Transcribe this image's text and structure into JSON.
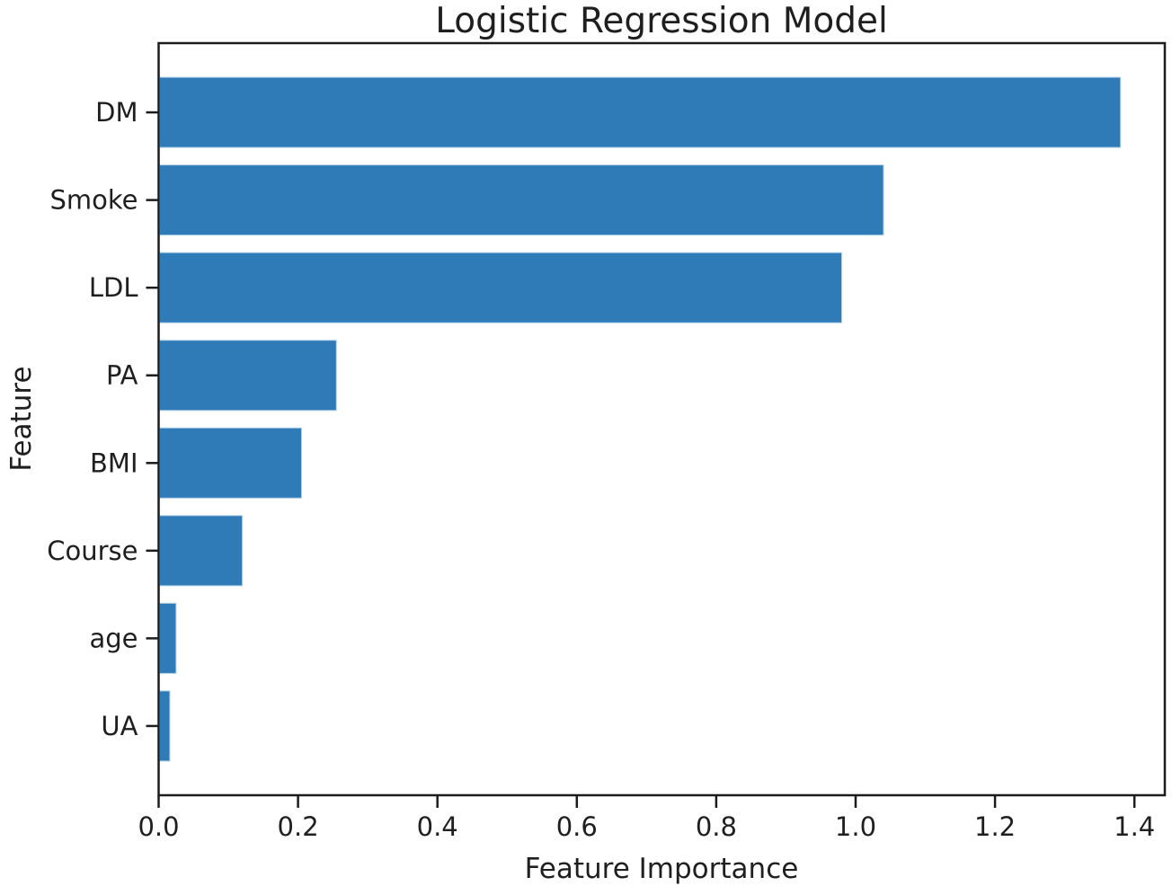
{
  "figure": {
    "title": "Logistic Regression Model",
    "xlabel": "Feature Importance",
    "ylabel": "Feature"
  },
  "chart_data": {
    "type": "bar",
    "orientation": "horizontal",
    "title": "Logistic Regression Model",
    "xlabel": "Feature Importance",
    "ylabel": "Feature",
    "categories": [
      "DM",
      "Smoke",
      "LDL",
      "PA",
      "BMI",
      "Course",
      "age",
      "UA"
    ],
    "values": [
      1.38,
      1.04,
      0.98,
      0.255,
      0.205,
      0.12,
      0.025,
      0.016
    ],
    "xlim": [
      0,
      1.4436
    ],
    "xticks": [
      0.0,
      0.2,
      0.4,
      0.6,
      0.8,
      1.0,
      1.2,
      1.4
    ],
    "xtick_labels": [
      "0.0",
      "0.2",
      "0.4",
      "0.6",
      "0.8",
      "1.0",
      "1.2",
      "1.4"
    ],
    "grid": false,
    "legend": "none",
    "bar_color": "#2E7BB8",
    "bar_edge_color": "#AFCFE9",
    "spine_color": "#1C1C1C",
    "text_color": "#1F1F1F",
    "background_color": "#FFFFFF"
  }
}
